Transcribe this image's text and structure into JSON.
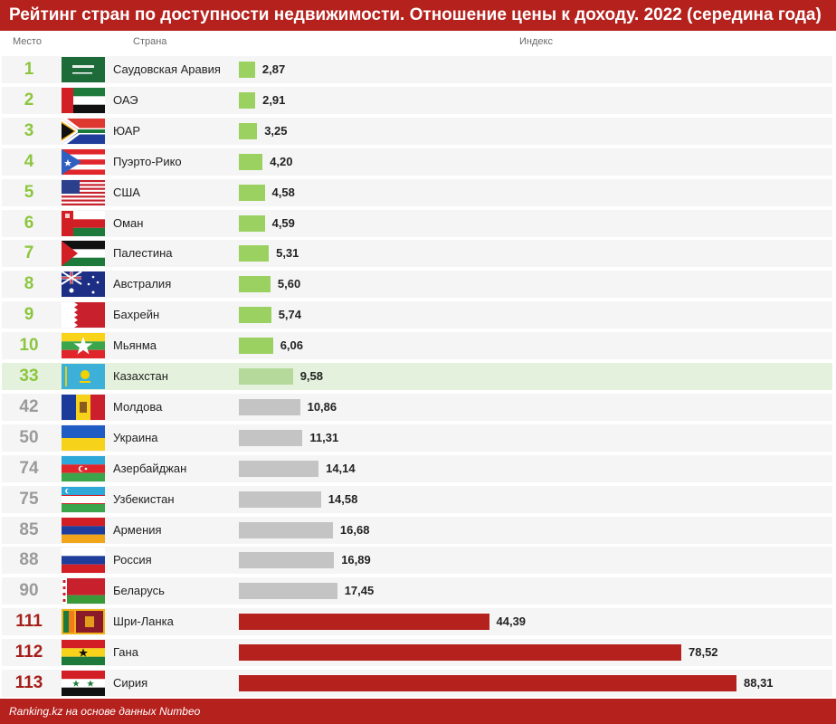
{
  "title": "Рейтинг стран по доступности недвижимости. Отношение цены к доходу. 2022 (середина года)",
  "headers": {
    "rank": "Место",
    "country": "Страна",
    "index": "Индекс"
  },
  "footer": "Ranking.kz на основе данных Numbeo",
  "colors": {
    "top_bar": "#9bd160",
    "kazakhstan_bar": "#b4d99a",
    "neighbor_bar": "#c4c4c4",
    "bottom_bar": "#b5211d",
    "brand_red": "#b5211d"
  },
  "chart_data": {
    "type": "bar",
    "orientation": "horizontal",
    "title": "Рейтинг стран по доступности недвижимости. Отношение цены к доходу. 2022 (середина года)",
    "xlabel": "Индекс",
    "ylabel": "Страна",
    "xlim": [
      0,
      88.31
    ],
    "grid": false,
    "rows": [
      {
        "rank": "1",
        "country": "Саудовская Аравия",
        "value": 2.87,
        "label": "2,87",
        "group": "g",
        "flag": "saudi-arabia-flag-icon"
      },
      {
        "rank": "2",
        "country": "ОАЭ",
        "value": 2.91,
        "label": "2,91",
        "group": "g",
        "flag": "uae-flag-icon"
      },
      {
        "rank": "3",
        "country": "ЮАР",
        "value": 3.25,
        "label": "3,25",
        "group": "g",
        "flag": "south-africa-flag-icon"
      },
      {
        "rank": "4",
        "country": "Пуэрто-Рико",
        "value": 4.2,
        "label": "4,20",
        "group": "g",
        "flag": "puerto-rico-flag-icon"
      },
      {
        "rank": "5",
        "country": "США",
        "value": 4.58,
        "label": "4,58",
        "group": "g",
        "flag": "usa-flag-icon"
      },
      {
        "rank": "6",
        "country": "Оман",
        "value": 4.59,
        "label": "4,59",
        "group": "g",
        "flag": "oman-flag-icon"
      },
      {
        "rank": "7",
        "country": "Палестина",
        "value": 5.31,
        "label": "5,31",
        "group": "g",
        "flag": "palestine-flag-icon"
      },
      {
        "rank": "8",
        "country": "Австралия",
        "value": 5.6,
        "label": "5,60",
        "group": "g",
        "flag": "australia-flag-icon"
      },
      {
        "rank": "9",
        "country": "Бахрейн",
        "value": 5.74,
        "label": "5,74",
        "group": "g",
        "flag": "bahrain-flag-icon"
      },
      {
        "rank": "10",
        "country": "Мьянма",
        "value": 6.06,
        "label": "6,06",
        "group": "g",
        "flag": "myanmar-flag-icon"
      },
      {
        "rank": "33",
        "country": "Казахстан",
        "value": 9.58,
        "label": "9,58",
        "group": "k",
        "flag": "kazakhstan-flag-icon"
      },
      {
        "rank": "42",
        "country": "Молдова",
        "value": 10.86,
        "label": "10,86",
        "group": "n",
        "flag": "moldova-flag-icon"
      },
      {
        "rank": "50",
        "country": "Украина",
        "value": 11.31,
        "label": "11,31",
        "group": "n",
        "flag": "ukraine-flag-icon"
      },
      {
        "rank": "74",
        "country": "Азербайджан",
        "value": 14.14,
        "label": "14,14",
        "group": "n",
        "flag": "azerbaijan-flag-icon"
      },
      {
        "rank": "75",
        "country": "Узбекистан",
        "value": 14.58,
        "label": "14,58",
        "group": "n",
        "flag": "uzbekistan-flag-icon"
      },
      {
        "rank": "85",
        "country": "Армения",
        "value": 16.68,
        "label": "16,68",
        "group": "n",
        "flag": "armenia-flag-icon"
      },
      {
        "rank": "88",
        "country": "Россия",
        "value": 16.89,
        "label": "16,89",
        "group": "n",
        "flag": "russia-flag-icon"
      },
      {
        "rank": "90",
        "country": "Беларусь",
        "value": 17.45,
        "label": "17,45",
        "group": "n",
        "flag": "belarus-flag-icon"
      },
      {
        "rank": "111",
        "country": "Шри-Ланка",
        "value": 44.39,
        "label": "44,39",
        "group": "r",
        "flag": "sri-lanka-flag-icon"
      },
      {
        "rank": "112",
        "country": "Гана",
        "value": 78.52,
        "label": "78,52",
        "group": "r",
        "flag": "ghana-flag-icon"
      },
      {
        "rank": "113",
        "country": "Сирия",
        "value": 88.31,
        "label": "88,31",
        "group": "r",
        "flag": "syria-flag-icon"
      }
    ]
  }
}
